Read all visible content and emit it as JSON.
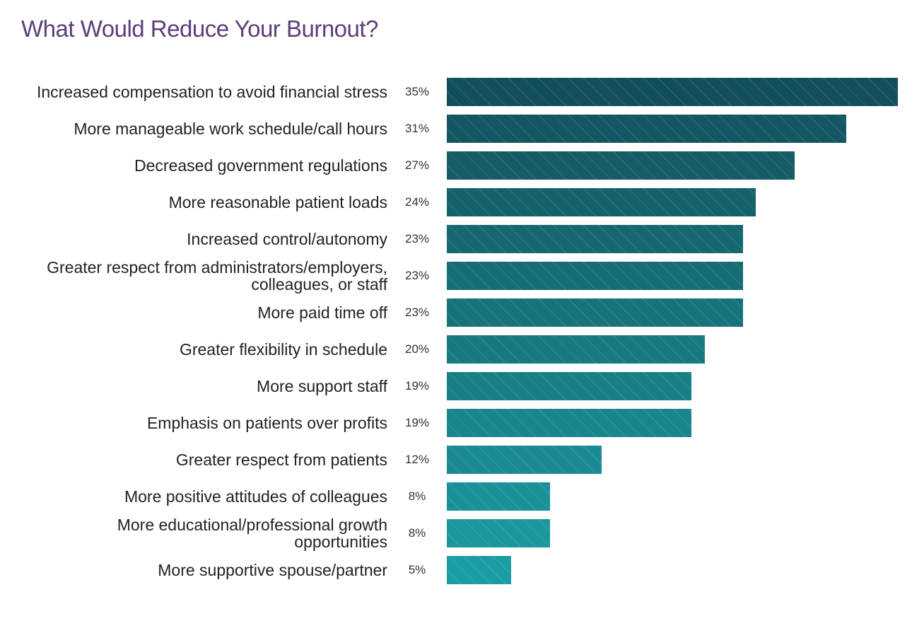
{
  "chart_data": {
    "type": "barh",
    "title": "What Would Reduce Your Burnout?",
    "categories": [
      "Increased compensation to avoid financial stress",
      "More manageable work schedule/call hours",
      "Decreased government regulations",
      "More reasonable patient loads",
      "Increased control/autonomy",
      "Greater respect from administrators/employers, colleagues, or staff",
      "More paid time off",
      "Greater flexibility in schedule",
      "More support staff",
      "Emphasis on patients over profits",
      "Greater respect from patients",
      "More positive attitudes of colleagues",
      "More educational/professional growth opportunities",
      "More supportive spouse/partner"
    ],
    "values": [
      35,
      31,
      27,
      24,
      23,
      23,
      23,
      20,
      19,
      19,
      12,
      8,
      8,
      5
    ],
    "value_labels": [
      "35%",
      "31%",
      "27%",
      "24%",
      "23%",
      "23%",
      "23%",
      "20%",
      "19%",
      "19%",
      "12%",
      "8%",
      "8%",
      "5%"
    ],
    "colors": [
      "#134f5b",
      "#145762",
      "#155c66",
      "#15626b",
      "#166870",
      "#176d75",
      "#17737a",
      "#187980",
      "#197f86",
      "#19858c",
      "#1a8b92",
      "#1a9198",
      "#1b979e",
      "#1b9da3"
    ]
  }
}
